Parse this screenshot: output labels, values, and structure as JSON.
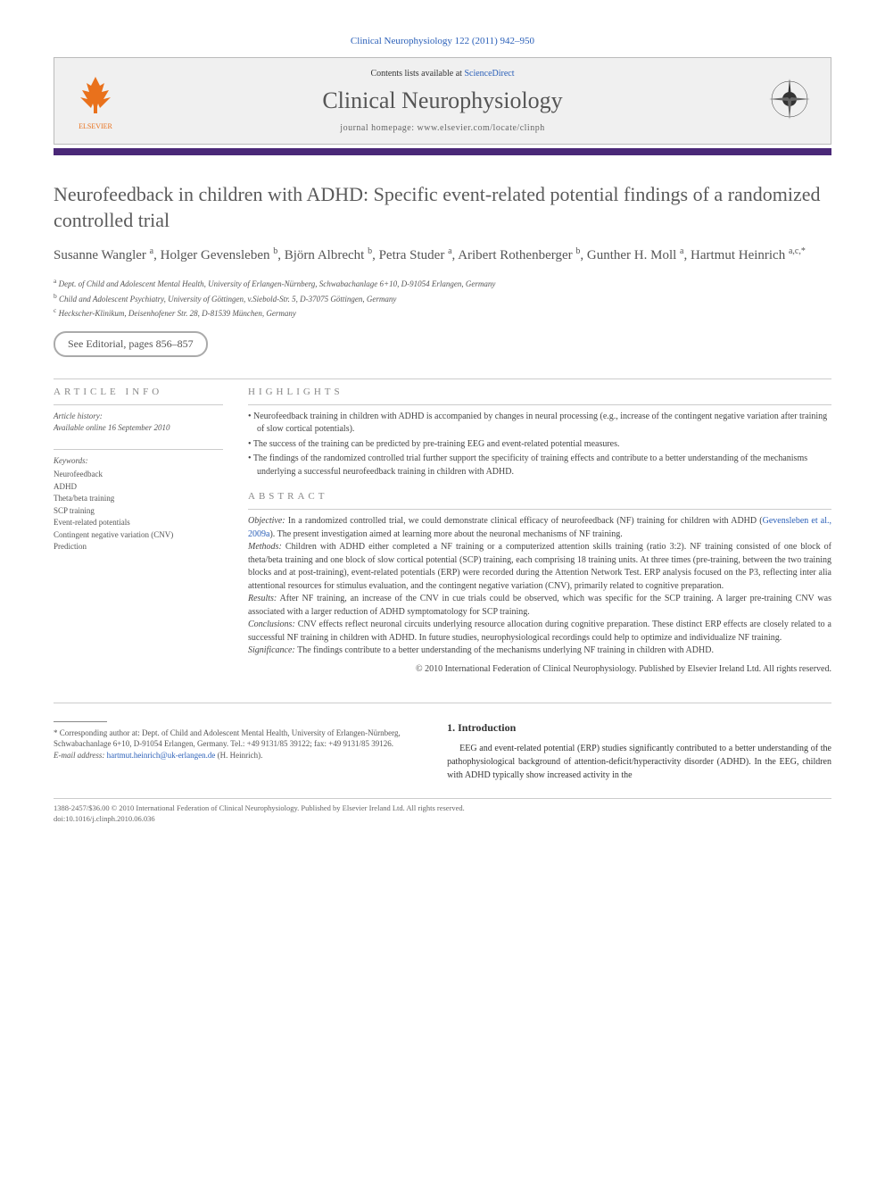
{
  "journal_ref": "Clinical Neurophysiology 122 (2011) 942–950",
  "header": {
    "contents_prefix": "Contents lists available at ",
    "contents_link": "ScienceDirect",
    "journal_name": "Clinical Neurophysiology",
    "homepage_prefix": "journal homepage: ",
    "homepage": "www.elsevier.com/locate/clinph",
    "publisher": "ELSEVIER"
  },
  "colors": {
    "bar": "#4a2878",
    "link": "#2a5fb8",
    "elsevier": "#e9711c"
  },
  "title": "Neurofeedback in children with ADHD: Specific event-related potential findings of a randomized controlled trial",
  "authors_html": "Susanne Wangler <sup>a</sup>, Holger Gevensleben <sup>b</sup>, Björn Albrecht <sup>b</sup>, Petra Studer <sup>a</sup>, Aribert Rothenberger <sup>b</sup>, Gunther H. Moll <sup>a</sup>, Hartmut Heinrich <sup>a,c,*</sup>",
  "affiliations": [
    "a Dept. of Child and Adolescent Mental Health, University of Erlangen-Nürnberg, Schwabachanlage 6+10, D-91054 Erlangen, Germany",
    "b Child and Adolescent Psychiatry, University of Göttingen, v.Siebold-Str. 5, D-37075 Göttingen, Germany",
    "c Heckscher-Klinikum, Deisenhofener Str. 28, D-81539 München, Germany"
  ],
  "editorial_badge": "See Editorial, pages 856–857",
  "info": {
    "section_label": "ARTICLE INFO",
    "history_label": "Article history:",
    "history_value": "Available online 16 September 2010",
    "keywords_label": "Keywords:",
    "keywords": [
      "Neurofeedback",
      "ADHD",
      "Theta/beta training",
      "SCP training",
      "Event-related potentials",
      "Contingent negative variation (CNV)",
      "Prediction"
    ]
  },
  "highlights": {
    "label": "HIGHLIGHTS",
    "items": [
      "Neurofeedback training in children with ADHD is accompanied by changes in neural processing (e.g., increase of the contingent negative variation after training of slow cortical potentials).",
      "The success of the training can be predicted by pre-training EEG and event-related potential measures.",
      "The findings of the randomized controlled trial further support the specificity of training effects and contribute to a better understanding of the mechanisms underlying a successful neurofeedback training in children with ADHD."
    ]
  },
  "abstract": {
    "label": "ABSTRACT",
    "objective_label": "Objective:",
    "objective": "In a randomized controlled trial, we could demonstrate clinical efficacy of neurofeedback (NF) training for children with ADHD (",
    "objective_cite": "Gevensleben et al., 2009a",
    "objective_tail": "). The present investigation aimed at learning more about the neuronal mechanisms of NF training.",
    "methods_label": "Methods:",
    "methods": "Children with ADHD either completed a NF training or a computerized attention skills training (ratio 3:2). NF training consisted of one block of theta/beta training and one block of slow cortical potential (SCP) training, each comprising 18 training units. At three times (pre-training, between the two training blocks and at post-training), event-related potentials (ERP) were recorded during the Attention Network Test. ERP analysis focused on the P3, reflecting inter alia attentional resources for stimulus evaluation, and the contingent negative variation (CNV), primarily related to cognitive preparation.",
    "results_label": "Results:",
    "results": "After NF training, an increase of the CNV in cue trials could be observed, which was specific for the SCP training. A larger pre-training CNV was associated with a larger reduction of ADHD symptomatology for SCP training.",
    "conclusions_label": "Conclusions:",
    "conclusions": "CNV effects reflect neuronal circuits underlying resource allocation during cognitive preparation. These distinct ERP effects are closely related to a successful NF training in children with ADHD. In future studies, neurophysiological recordings could help to optimize and individualize NF training.",
    "significance_label": "Significance:",
    "significance": "The findings contribute to a better understanding of the mechanisms underlying NF training in children with ADHD.",
    "copyright": "© 2010 International Federation of Clinical Neurophysiology. Published by Elsevier Ireland Ltd. All rights reserved."
  },
  "corresponding": {
    "label": "* Corresponding author at:",
    "text": "Dept. of Child and Adolescent Mental Health, University of Erlangen-Nürnberg, Schwabachanlage 6+10, D-91054 Erlangen, Germany. Tel.: +49 9131/85 39122; fax: +49 9131/85 39126.",
    "email_label": "E-mail address:",
    "email": "hartmut.heinrich@uk-erlangen.de",
    "email_person": "(H. Heinrich)."
  },
  "intro": {
    "heading": "1. Introduction",
    "para": "EEG and event-related potential (ERP) studies significantly contributed to a better understanding of the pathophysiological background of attention-deficit/hyperactivity disorder (ADHD). In the EEG, children with ADHD typically show increased activity in the"
  },
  "footer": {
    "line1": "1388-2457/$36.00 © 2010 International Federation of Clinical Neurophysiology. Published by Elsevier Ireland Ltd. All rights reserved.",
    "line2": "doi:10.1016/j.clinph.2010.06.036"
  }
}
